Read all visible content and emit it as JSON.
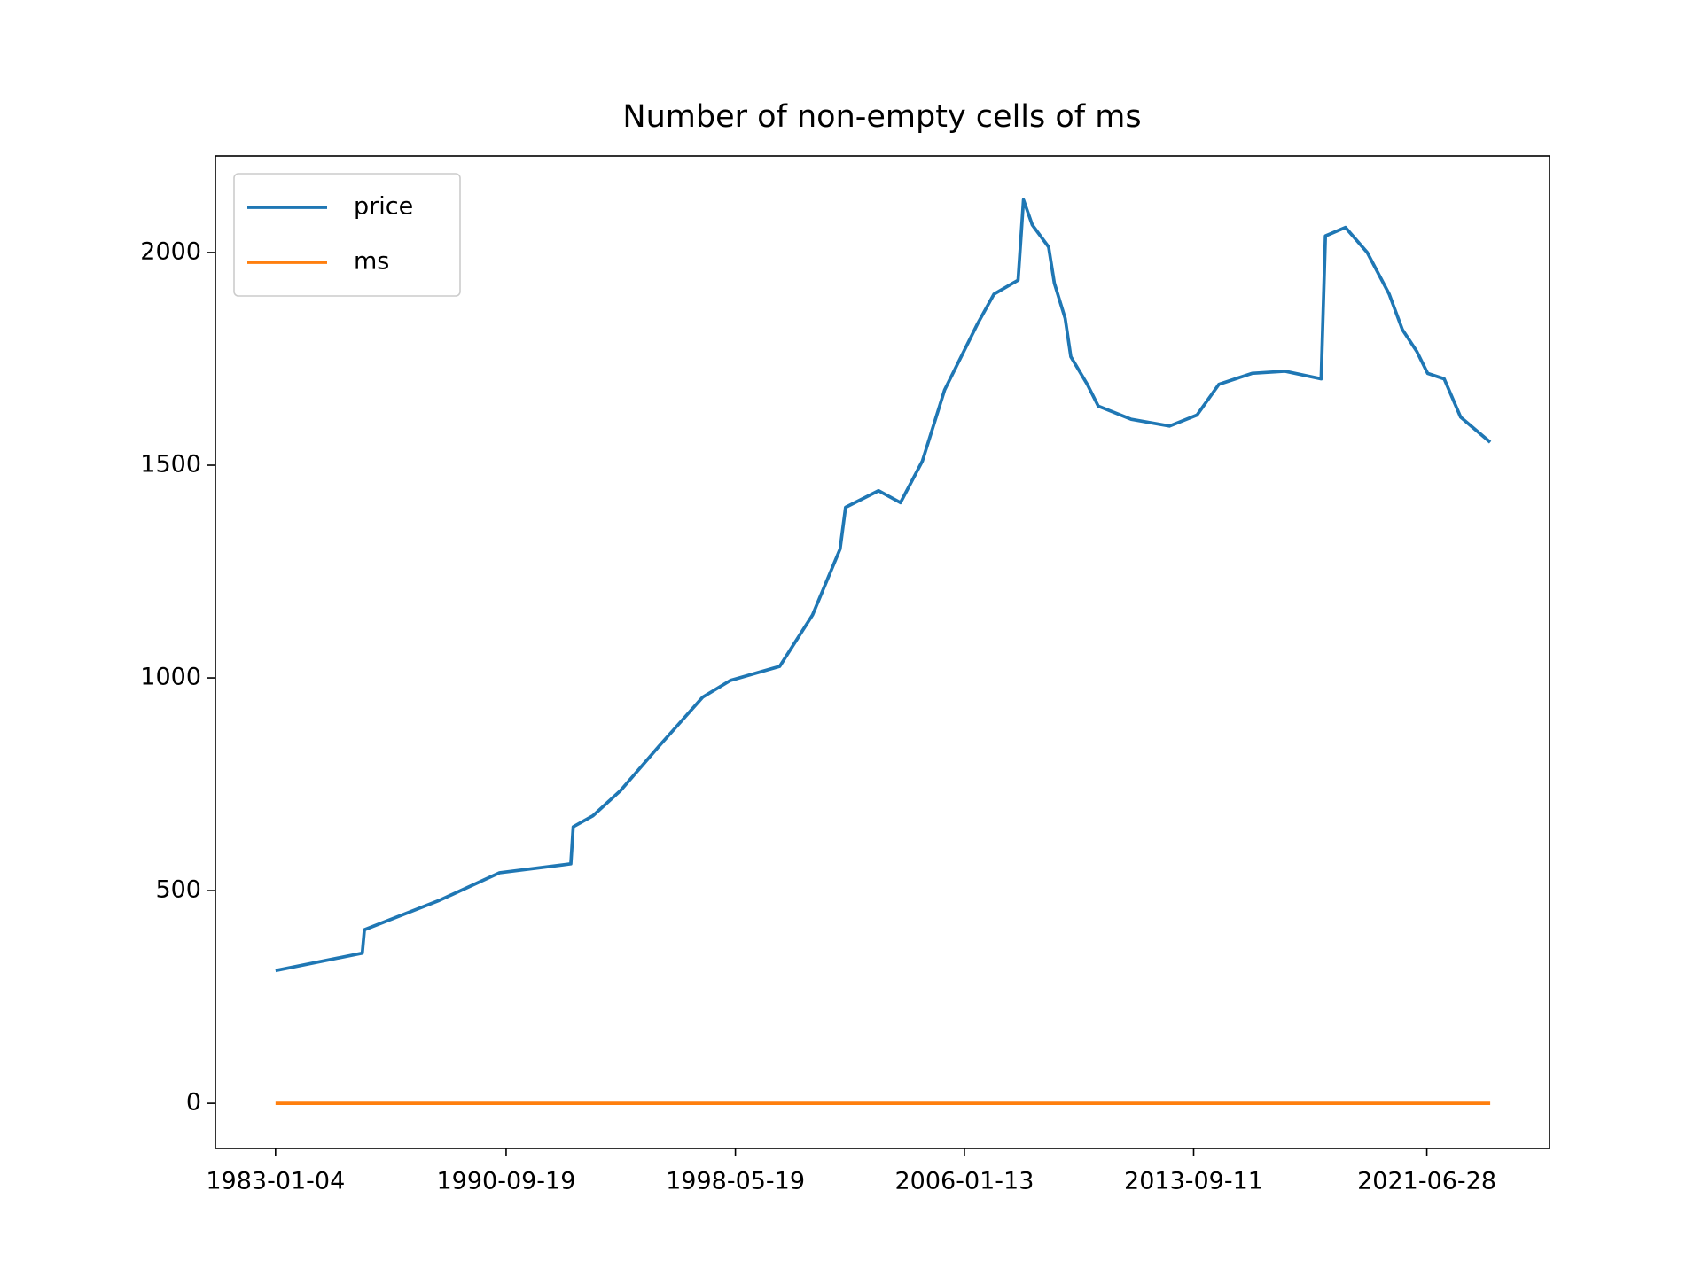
{
  "chart_data": {
    "type": "line",
    "title": "Number of non-empty cells of ms",
    "x": [
      "1983-01-04",
      "1985-11-28",
      "1985-12-24",
      "1988-06-25",
      "1990-07-01",
      "1992-11-17",
      "1992-12-16",
      "1993-08-14",
      "1994-07-16",
      "1995-10-27",
      "1997-04-16",
      "1998-03-18",
      "1999-11-10",
      "2000-12-16",
      "2001-11-17",
      "2002-01-23",
      "2003-03-01",
      "2003-11-24",
      "2004-08-18",
      "2005-05-16",
      "2006-06-21",
      "2007-01-08",
      "2007-10-30",
      "2008-01-04",
      "2008-04-20",
      "2008-11-06",
      "2009-01-15",
      "2009-05-27",
      "2009-08-04",
      "2010-02-21",
      "2010-07-05",
      "2011-08-11",
      "2012-11-21",
      "2013-10-23",
      "2014-07-16",
      "2015-08-25",
      "2016-10-01",
      "2017-12-16",
      "2018-02-06",
      "2018-10-08",
      "2019-07-02",
      "2020-03-26",
      "2020-09-02",
      "2021-02-24",
      "2021-07-08",
      "2022-01-26",
      "2022-08-15",
      "2023-08-11"
    ],
    "series": [
      {
        "name": "price",
        "color": "#1f77b4",
        "values": [
          312,
          353,
          408,
          477,
          542,
          563,
          650,
          676,
          735,
          839,
          955,
          994,
          1027,
          1148,
          1303,
          1401,
          1440,
          1412,
          1510,
          1677,
          1832,
          1902,
          1935,
          2124,
          2065,
          2013,
          1928,
          1845,
          1755,
          1690,
          1639,
          1608,
          1592,
          1618,
          1690,
          1716,
          1721,
          1703,
          2039,
          2059,
          2000,
          1902,
          1819,
          1768,
          1716,
          1703,
          1613,
          1554
        ]
      },
      {
        "name": "ms",
        "color": "#ff7f0e",
        "values": [
          0,
          0,
          0,
          0,
          0,
          0,
          0,
          0,
          0,
          0,
          0,
          0,
          0,
          0,
          0,
          0,
          0,
          0,
          0,
          0,
          0,
          0,
          0,
          0,
          0,
          0,
          0,
          0,
          0,
          0,
          0,
          0,
          0,
          0,
          0,
          0,
          0,
          0,
          0,
          0,
          0,
          0,
          0,
          0,
          0,
          0,
          0,
          0
        ]
      }
    ],
    "xlim": [
      "1980-12-31",
      "2025-08-04"
    ],
    "xticks": [
      "1983-01-04",
      "1990-09-19",
      "1998-05-19",
      "2006-01-13",
      "2013-09-11",
      "2021-06-28"
    ],
    "ylim": [
      -106,
      2227
    ],
    "yticks": [
      0,
      500,
      1000,
      1500,
      2000
    ],
    "grid": false,
    "legend": "upper left"
  }
}
